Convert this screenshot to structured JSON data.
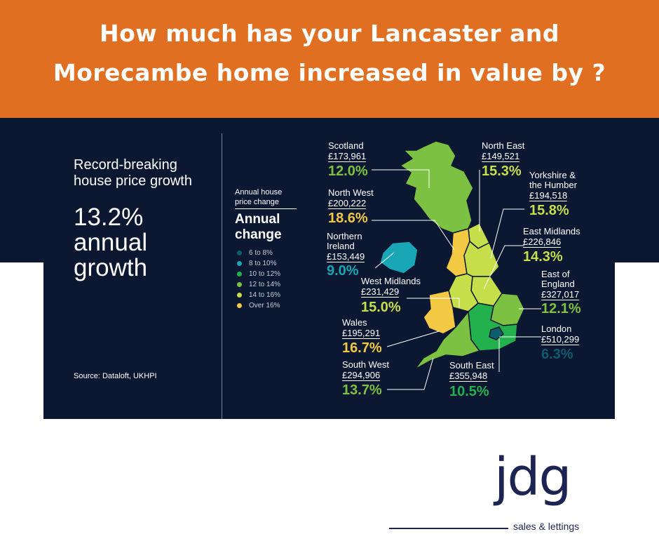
{
  "header": {
    "line1": "How much has your Lancaster and",
    "line2": "Morecambe home increased in value by ?",
    "background": "#e06f22"
  },
  "left": {
    "headline1": "Record-breaking",
    "headline2": "house price growth",
    "big1": "13.2%",
    "big2": "annual",
    "big3": "growth",
    "source": "Source: Dataloft, UKHPI"
  },
  "legend": {
    "subtitle1": "Annual house",
    "subtitle2": "price change",
    "title1": "Annual",
    "title2": "change",
    "items": [
      {
        "label": "6 to 8%",
        "color": "#0d5e6b"
      },
      {
        "label": "8 to 10%",
        "color": "#19a7b5"
      },
      {
        "label": "10 to 12%",
        "color": "#22b14c"
      },
      {
        "label": "12 to 14%",
        "color": "#7cc142"
      },
      {
        "label": "14 to 16%",
        "color": "#c6de4a"
      },
      {
        "label": "Over 16%",
        "color": "#f3c944"
      }
    ]
  },
  "regions": [
    {
      "key": "scotland",
      "name": "Scotland",
      "price": "£173,961",
      "pct": "12.0%",
      "color": "#7cc142"
    },
    {
      "key": "north-east",
      "name": "North East",
      "price": "£149,521",
      "pct": "15.3%",
      "color": "#c6de4a"
    },
    {
      "key": "yorkshire",
      "name": "Yorkshire & the Humber",
      "name1": "Yorkshire &",
      "name2": "the Humber",
      "price": "£194,518",
      "pct": "15.8%",
      "color": "#c6de4a"
    },
    {
      "key": "north-west",
      "name": "North West",
      "price": "£200,222",
      "pct": "18.6%",
      "color": "#f3c944"
    },
    {
      "key": "northern-ireland",
      "name": "Northern Ireland",
      "name1": "Northern",
      "name2": "Ireland",
      "price": "£153,449",
      "pct": "9.0%",
      "color": "#19a7b5"
    },
    {
      "key": "east-midlands",
      "name": "East Midlands",
      "price": "£226,846",
      "pct": "14.3%",
      "color": "#c6de4a"
    },
    {
      "key": "west-midlands",
      "name": "West Midlands",
      "price": "£231,429",
      "pct": "15.0%",
      "color": "#c6de4a"
    },
    {
      "key": "east-of-england",
      "name": "East of England",
      "name1": "East of",
      "name2": "England",
      "price": "£327,017",
      "pct": "12.1%",
      "color": "#7cc142"
    },
    {
      "key": "wales",
      "name": "Wales",
      "price": "£195,291",
      "pct": "16.7%",
      "color": "#f3c944"
    },
    {
      "key": "london",
      "name": "London",
      "price": "£510,299",
      "pct": "6.3%",
      "color": "#0d5e6b"
    },
    {
      "key": "south-west",
      "name": "South West",
      "price": "£294,906",
      "pct": "13.7%",
      "color": "#7cc142"
    },
    {
      "key": "south-east",
      "name": "South East",
      "price": "£355,948",
      "pct": "10.5%",
      "color": "#22b14c"
    }
  ],
  "logo": {
    "word": "jdg",
    "tagline": "sales & lettings",
    "color": "#1b2452"
  }
}
